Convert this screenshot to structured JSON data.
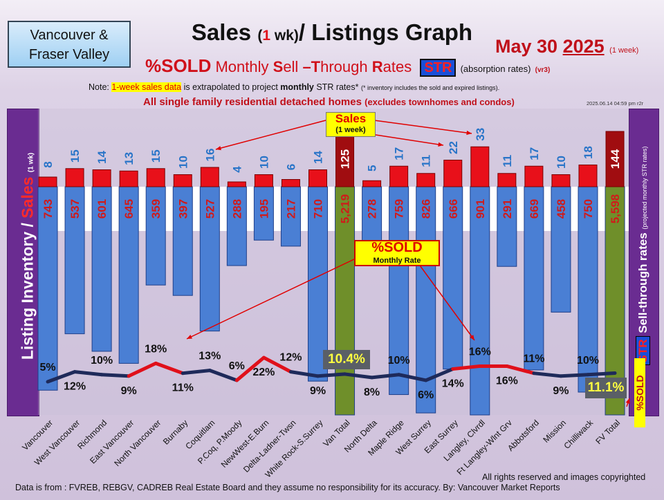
{
  "header": {
    "region_line1": "Vancouver &",
    "region_line2": "Fraser Valley",
    "title_pre": "Sales ",
    "title_paren_open": "(",
    "title_one": "1",
    "title_wk": " wk)",
    "title_post": "/ Listings Graph",
    "date_main": "May 30 ",
    "date_year": "2025",
    "date_note": "(1 week)",
    "sub_sold": "%SOLD",
    "sub_m": "Monthly ",
    "sub_s": "S",
    "sub_ell": "ell ",
    "sub_dash_t": "–T",
    "sub_hrough": "hrough ",
    "sub_r": "R",
    "sub_ates": "ates",
    "sub_str": "STR",
    "sub_absorb": "(absorption rates)",
    "sub_ver": "(vr3)",
    "note_pre": "Note: ",
    "note_hl": "1-week sales data",
    "note_mid": " is extrapolated to project ",
    "note_bold": "monthly",
    "note_post": " STR rates*",
    "note_small": "(* inventory includes the sold and expired listings).",
    "scope_main": "All single family residential detached homes",
    "scope_paren": "(excludes townhomes and condos)",
    "stamp": "2025.06.14 04:59 pm r2r"
  },
  "side": {
    "left_listing": "Listing Inventory",
    "left_slash": " / ",
    "left_sales": "Sales",
    "left_wk": "(1 wk)",
    "right_str": "STR",
    "right_label": " Sell-through rates ",
    "right_small": "(projected monthly STR rates)",
    "right_sold": "%SOLD"
  },
  "callouts": {
    "sales_label": "Sales",
    "sales_sub": "(1 week)",
    "sold_label": "%SOLD",
    "sold_sub": "Monthly Rate",
    "van_total_pct": "10.4%",
    "fv_total_pct": "11.1%"
  },
  "footer": {
    "source": "Data is from : FVREB, REBGV, CADREB Real Estate Board and they assume no responsibility for its accuracy. By: Vancouver Market Reports",
    "rights": "All rights reserved and  images copyrighted"
  },
  "colors": {
    "listing_bar": "#4a7fd4",
    "total_bar": "#6f8f2a",
    "sales_bar": "#e8101a",
    "total_sales_bar": "#a00d10",
    "sales_label": "#2874c8",
    "inventory_label": "#d01a1a",
    "str_line_low": "#1e2a5a",
    "str_line_high": "#e0101a"
  },
  "chart_data": {
    "type": "bar",
    "categories": [
      "Vancouver",
      "West Vancouver",
      "Richmond",
      "East Vancouver",
      "North Vancouver",
      "Burnaby",
      "Coquitlam",
      "P.Coq, P.Moody",
      "NewWest-E.Burn",
      "Delta-Ladner-Twsn",
      "White Rock-S.Surrey",
      "Van Total",
      "North Delta",
      "Maple Ridge",
      "West Surrey",
      "East Surrey",
      "Langley, Clvrdl",
      "Ft Langley-Wlnt Grv",
      "Abbotsford",
      "Mission",
      "Chilliwack",
      "FV Total"
    ],
    "series": [
      {
        "name": "Listing Inventory",
        "values": [
          743,
          537,
          601,
          645,
          359,
          397,
          527,
          288,
          195,
          217,
          710,
          5219,
          278,
          759,
          826,
          666,
          901,
          291,
          669,
          458,
          750,
          5598
        ],
        "labels": [
          "743",
          "537",
          "601",
          "645",
          "359",
          "397",
          "527",
          "288",
          "195",
          "217",
          "710",
          "5,219",
          "278",
          "759",
          "826",
          "666",
          "901",
          "291",
          "669",
          "458",
          "750",
          "5,598"
        ]
      },
      {
        "name": "Sales",
        "values": [
          8,
          15,
          14,
          13,
          15,
          10,
          16,
          4,
          10,
          6,
          14,
          125,
          5,
          17,
          11,
          22,
          33,
          11,
          17,
          10,
          18,
          144
        ]
      },
      {
        "name": "%SOLD",
        "values": [
          5,
          12,
          10,
          9,
          18,
          11,
          13,
          6,
          22,
          12,
          9,
          10.4,
          8,
          10,
          6,
          14,
          16,
          16,
          11,
          9,
          10,
          11.1
        ],
        "labels": [
          "5%",
          "12%",
          "10%",
          "9%",
          "18%",
          "11%",
          "13%",
          "6%",
          "22%",
          "12%",
          "9%",
          "",
          "8%",
          "10%",
          "6%",
          "14%",
          "16%",
          "16%",
          "11%",
          "9%",
          "10%",
          ""
        ]
      }
    ],
    "totals": [
      "Van Total",
      "FV Total"
    ]
  }
}
